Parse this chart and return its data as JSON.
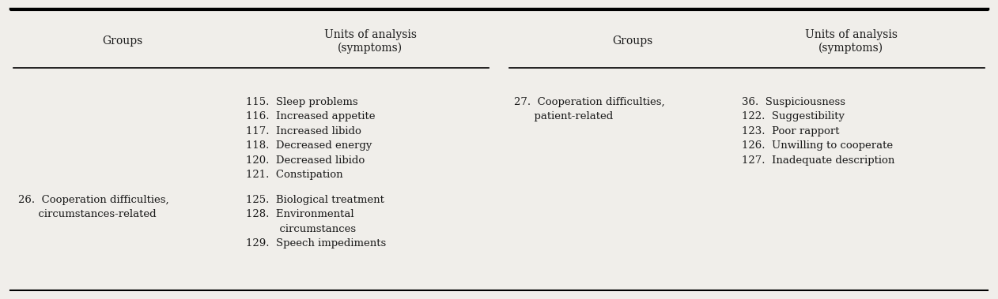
{
  "bg_color": "#f0eeea",
  "text_color": "#1a1a1a",
  "left_panel": {
    "header_groups": "Groups",
    "header_units": "Units of analysis\n(symptoms)",
    "rows": [
      {
        "group": "",
        "units": "115.  Sleep problems\n116.  Increased appetite\n117.  Increased libido\n118.  Decreased energy\n120.  Decreased libido\n121.  Constipation"
      },
      {
        "group": "26.  Cooperation difficulties,\n      circumstances-related",
        "units": "125.  Biological treatment\n128.  Environmental\n          circumstances\n129.  Speech impediments"
      }
    ]
  },
  "right_panel": {
    "header_groups": "Groups",
    "header_units": "Units of analysis\n(symptoms)",
    "rows": [
      {
        "group": "27.  Cooperation difficulties,\n      patient-related",
        "units": "36.  Suspiciousness\n122.  Suggestibility\n123.  Poor rapport\n126.  Unwilling to cooperate\n127.  Inadequate description"
      }
    ]
  },
  "font_size": 9.5,
  "header_font_size": 10
}
